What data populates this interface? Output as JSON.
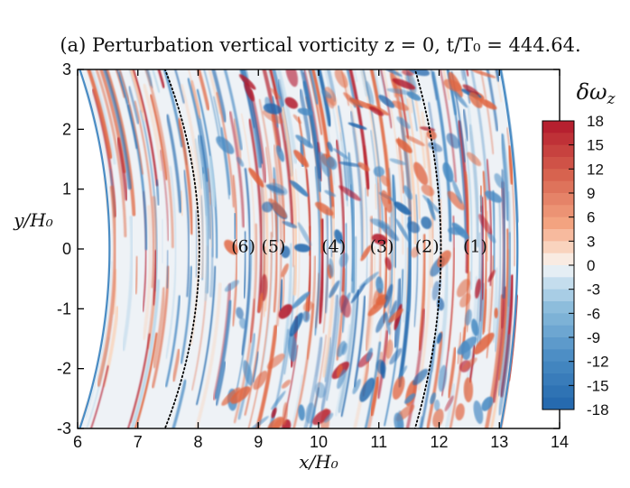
{
  "chart_data": {
    "type": "heatmap",
    "title": "(a) Perturbation vertical vorticity z = 0, t/T₀ = 444.64.",
    "xlabel": "x/H₀",
    "ylabel": "y/H₀",
    "xlim": [
      6,
      14
    ],
    "ylim": [
      -3,
      3
    ],
    "x_ticks": [
      "6",
      "7",
      "8",
      "9",
      "10",
      "11",
      "12",
      "13",
      "14"
    ],
    "y_ticks": [
      "-3",
      "-2",
      "-1",
      "0",
      "1",
      "2",
      "3"
    ],
    "colorbar": {
      "title": "δω_z",
      "range": [
        -18,
        18
      ],
      "ticks": [
        "18",
        "15",
        "12",
        "9",
        "6",
        "3",
        "0",
        "-3",
        "-6",
        "-9",
        "-12",
        "-15",
        "-18"
      ],
      "colors": {
        "max": "#b2182b",
        "high": "#e0643e",
        "mid_pos": "#fbd0b4",
        "zero": "#f7f7f7",
        "mid_neg": "#b7d6ea",
        "low": "#4a8cc4",
        "min": "#2166ac"
      }
    },
    "annotations": [
      {
        "text": "(6)",
        "x": 8.75,
        "y": 0.05
      },
      {
        "text": "(5)",
        "x": 9.25,
        "y": 0.05
      },
      {
        "text": "(4)",
        "x": 10.25,
        "y": 0.05
      },
      {
        "text": "(3)",
        "x": 11.05,
        "y": 0.05
      },
      {
        "text": "(2)",
        "x": 11.8,
        "y": 0.05
      },
      {
        "text": "(1)",
        "x": 12.6,
        "y": 0.05
      }
    ],
    "dotted_curves": [
      {
        "x_at_y0": 8.02,
        "x_at_y_pm3": 7.45
      },
      {
        "x_at_y0": 12.03,
        "x_at_y_pm3": 11.6
      }
    ],
    "domain_boundary": {
      "inner_x_at_y0": 6.5,
      "inner_x_at_y_pm3": 6.0,
      "outer_x_at_y0": 13.33,
      "outer_x_at_y_pm3": 13.05
    }
  }
}
